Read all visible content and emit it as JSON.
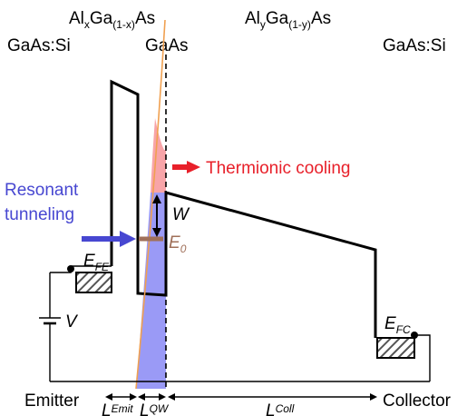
{
  "labels": {
    "left_contact": "GaAs:Si",
    "barrier1_material": {
      "base_a": "Al",
      "sub_a": "x",
      "base_b": "Ga",
      "sub_b": "(1-x)",
      "base_c": "As"
    },
    "well_material": "GaAs",
    "barrier2_material": {
      "base_a": "Al",
      "sub_a": "y",
      "base_b": "Ga",
      "sub_b": "(1-y)",
      "base_c": "As"
    },
    "right_contact": "GaAs:Si",
    "thermionic": "Thermionic cooling",
    "resonant_line1": "Resonant",
    "resonant_line2": "tunneling",
    "w": "W",
    "e0": {
      "base": "E",
      "sub": "0"
    },
    "efe": {
      "base": "E",
      "sub": "FE"
    },
    "efc": {
      "base": "E",
      "sub": "FC"
    },
    "voltage": "V",
    "emitter": "Emitter",
    "collector": "Collector",
    "l_emit": {
      "base": "L",
      "sub": "Emit"
    },
    "l_qw": {
      "base": "L",
      "sub": "QW"
    },
    "l_coll": {
      "base": "L",
      "sub": "Coll"
    }
  },
  "colors": {
    "band": "#000000",
    "thermionic_arrow": "#e8202a",
    "thermionic_fill": "#f8a4a8",
    "tunneling_arrow": "#4747d1",
    "tunneling_fill": "#9a9af6",
    "e0_level": "#a0705a",
    "orange_curve": "#f0a050",
    "hatch": "#555555"
  }
}
